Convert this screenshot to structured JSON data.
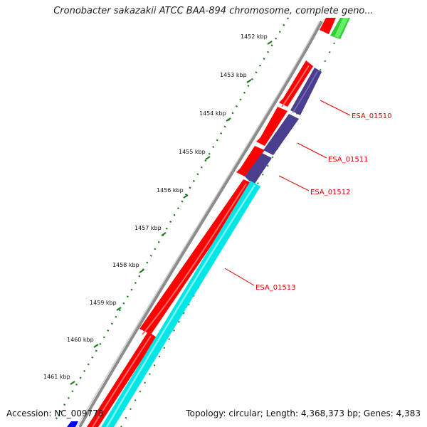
{
  "title": "Cronobacter sakazakii ATCC BAA-894 chromosome, complete geno...",
  "footer": {
    "accession": "Accession: NC_009778",
    "summary": "Topology: circular; Length: 4,368,373 bp; Genes: 4,383"
  },
  "ticks": [
    "1452 kbp",
    "1453 kbp",
    "1454 kbp",
    "1455 kbp",
    "1456 kbp",
    "1457 kbp",
    "1458 kbp",
    "1459 kbp",
    "1460 kbp",
    "1461 kbp"
  ],
  "genes": [
    "ESA_01510",
    "ESA_01511",
    "ESA_01512",
    "ESA_01513"
  ],
  "colors": {
    "backbone": "#888888",
    "cds_forward": "#ff0000",
    "cds_reverse_a": "#4a3f8f",
    "cds_reverse_b": "#00e5e5",
    "tick": "#1a7a1a",
    "label": "#e00000",
    "other_green": "#33cc33",
    "other_blue": "#0000ee"
  }
}
